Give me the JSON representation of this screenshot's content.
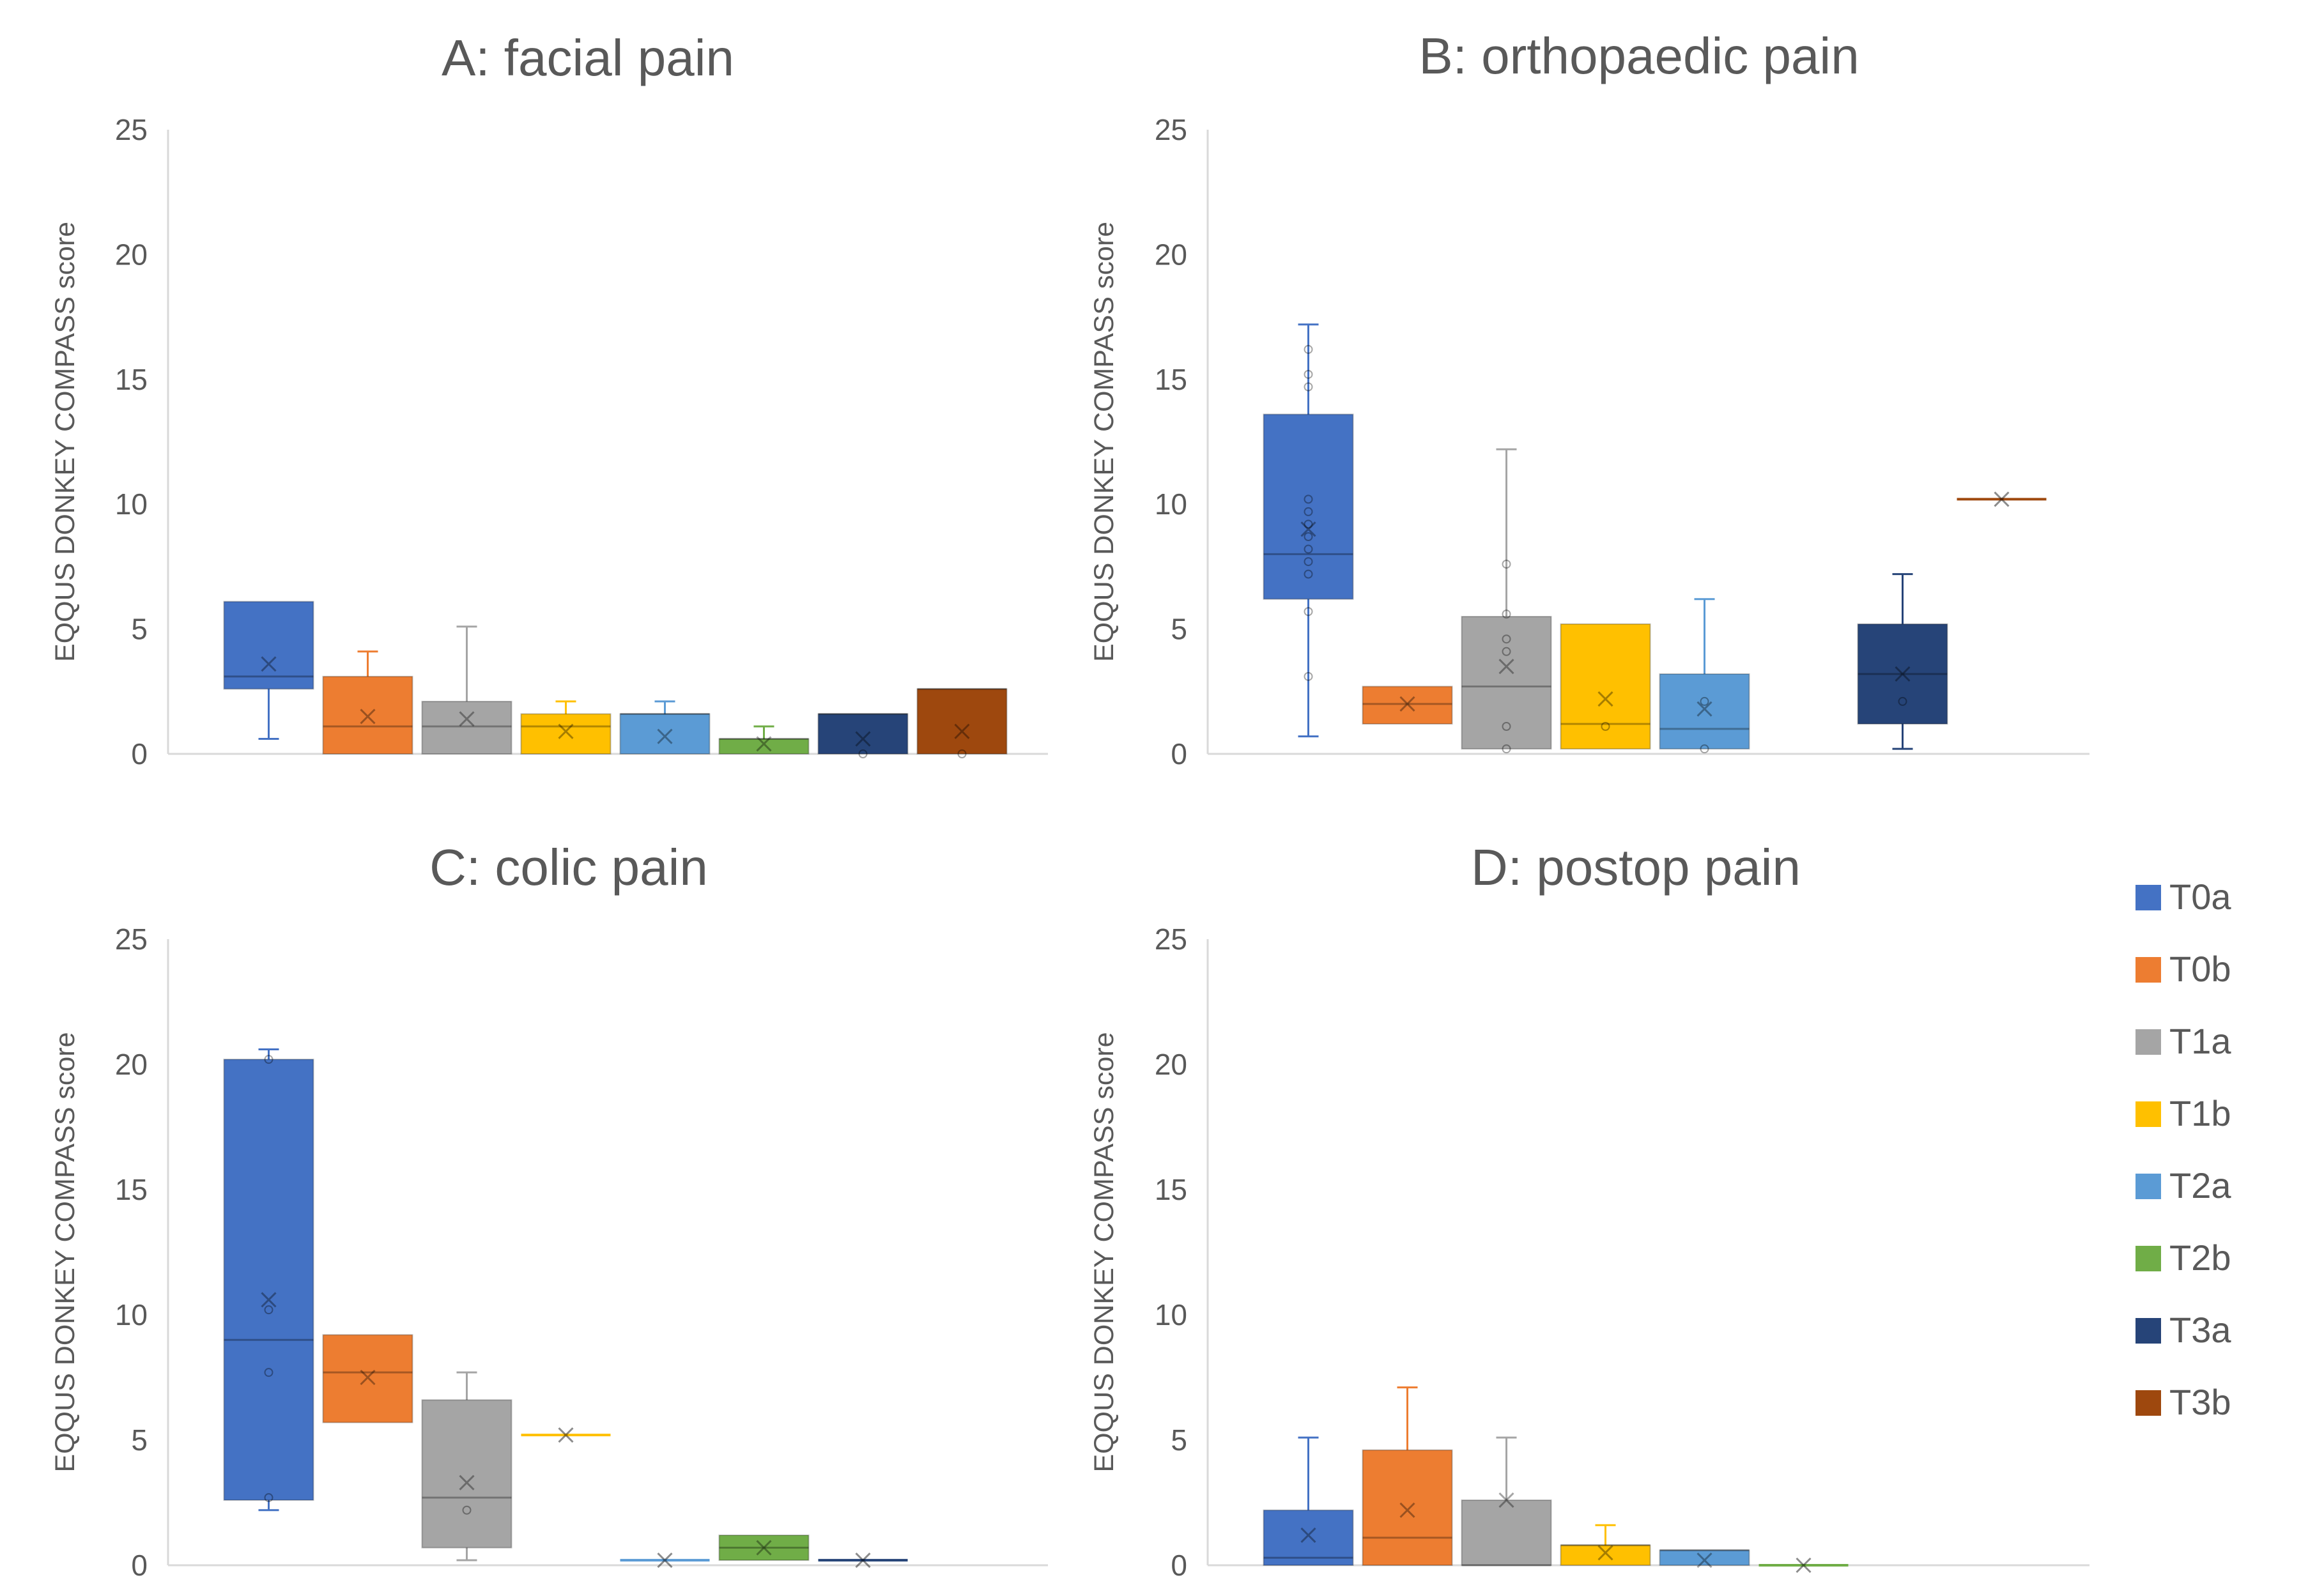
{
  "figure": {
    "y_axis_label": "EQQUS DONKEY COMPASS score"
  },
  "colors": {
    "T0a": "#4472C4",
    "T0b": "#ED7D31",
    "T1a": "#A5A5A5",
    "T1b": "#FFC000",
    "T2a": "#5B9BD5",
    "T2b": "#70AD47",
    "T3a": "#264478",
    "T3b": "#9E480E"
  },
  "legend": [
    "T0a",
    "T0b",
    "T1a",
    "T1b",
    "T2a",
    "T2b",
    "T3a",
    "T3b"
  ],
  "chart_data": [
    {
      "type": "box",
      "title": "A: facial pain",
      "ylabel": "EQQUS DONKEY COMPASS score",
      "ylim": [
        0,
        25
      ],
      "yticks": [
        0,
        5,
        10,
        15,
        20,
        25
      ],
      "series": [
        {
          "name": "T0a",
          "min": 0.6,
          "q1": 2.6,
          "median": 3.1,
          "q3": 6.1,
          "max": 6.1,
          "mean": 3.6,
          "outliers": []
        },
        {
          "name": "T0b",
          "min": 0,
          "q1": 0,
          "median": 1.1,
          "q3": 3.1,
          "max": 4.1,
          "mean": 1.5,
          "outliers": []
        },
        {
          "name": "T1a",
          "min": 0,
          "q1": 0,
          "median": 1.1,
          "q3": 2.1,
          "max": 5.1,
          "mean": 1.4,
          "outliers": []
        },
        {
          "name": "T1b",
          "min": 0,
          "q1": 0,
          "median": 1.1,
          "q3": 1.6,
          "max": 2.1,
          "mean": 0.9,
          "outliers": []
        },
        {
          "name": "T2a",
          "min": 0,
          "q1": 0,
          "median": 1.6,
          "q3": 1.6,
          "max": 2.1,
          "mean": 0.7,
          "outliers": []
        },
        {
          "name": "T2b",
          "min": 0,
          "q1": 0,
          "median": 0.6,
          "q3": 0.6,
          "max": 1.1,
          "mean": 0.4,
          "outliers": []
        },
        {
          "name": "T3a",
          "min": 0,
          "q1": 0,
          "median": 1.6,
          "q3": 1.6,
          "max": 1.6,
          "mean": 0.6,
          "outliers": [
            0
          ]
        },
        {
          "name": "T3b",
          "min": 0,
          "q1": 0,
          "median": 2.6,
          "q3": 2.6,
          "max": 2.6,
          "mean": 0.9,
          "outliers": [
            0
          ]
        }
      ]
    },
    {
      "type": "box",
      "title": "B: orthopaedic pain",
      "ylabel": "EQQUS DONKEY COMPASS score",
      "ylim": [
        0,
        25
      ],
      "yticks": [
        0,
        5,
        10,
        15,
        20,
        25
      ],
      "series": [
        {
          "name": "T0a",
          "min": 0.7,
          "q1": 6.2,
          "median": 8.0,
          "q3": 13.6,
          "max": 17.2,
          "mean": 9.0,
          "outliers": [
            3.1,
            5.7,
            7.2,
            7.7,
            8.2,
            8.7,
            9.2,
            9.7,
            10.2,
            14.7,
            15.2,
            16.2
          ]
        },
        {
          "name": "T0b",
          "min": 1.2,
          "q1": 1.2,
          "median": 2.0,
          "q3": 2.7,
          "max": 2.7,
          "mean": 2.0,
          "outliers": []
        },
        {
          "name": "T1a",
          "min": 0.2,
          "q1": 0.2,
          "median": 2.7,
          "q3": 5.5,
          "max": 12.2,
          "mean": 3.5,
          "outliers": [
            0.2,
            1.1,
            4.1,
            4.6,
            5.6,
            7.6
          ]
        },
        {
          "name": "T1b",
          "min": 0.2,
          "q1": 0.2,
          "median": 1.2,
          "q3": 5.2,
          "max": 5.2,
          "mean": 2.2,
          "outliers": [
            1.1
          ]
        },
        {
          "name": "T2a",
          "min": 0.2,
          "q1": 0.2,
          "median": 1.0,
          "q3": 3.2,
          "max": 6.2,
          "mean": 1.8,
          "outliers": [
            0.2,
            2.1
          ]
        },
        {
          "name": "T2b",
          "empty": true
        },
        {
          "name": "T3a",
          "min": 0.2,
          "q1": 1.2,
          "median": 3.2,
          "q3": 5.2,
          "max": 7.2,
          "mean": 3.2,
          "outliers": [
            2.1
          ]
        },
        {
          "name": "T3b",
          "min": 10.2,
          "q1": 10.2,
          "median": 10.2,
          "q3": 10.2,
          "max": 10.2,
          "mean": 10.2,
          "outliers": []
        }
      ]
    },
    {
      "type": "box",
      "title": "C: colic pain",
      "ylabel": "EQQUS DONKEY COMPASS score",
      "ylim": [
        0,
        25
      ],
      "yticks": [
        0,
        5,
        10,
        15,
        20,
        25
      ],
      "series": [
        {
          "name": "T0a",
          "min": 2.2,
          "q1": 2.6,
          "median": 9.0,
          "q3": 20.2,
          "max": 20.6,
          "mean": 10.6,
          "outliers": [
            2.7,
            7.7,
            10.2,
            20.2
          ]
        },
        {
          "name": "T0b",
          "min": 5.7,
          "q1": 5.7,
          "median": 7.7,
          "q3": 9.2,
          "max": 9.2,
          "mean": 7.5,
          "outliers": []
        },
        {
          "name": "T1a",
          "min": 0.2,
          "q1": 0.7,
          "median": 2.7,
          "q3": 6.6,
          "max": 7.7,
          "mean": 3.3,
          "outliers": [
            2.2
          ]
        },
        {
          "name": "T1b",
          "min": 5.2,
          "q1": 5.2,
          "median": 5.2,
          "q3": 5.2,
          "max": 5.2,
          "mean": 5.2,
          "outliers": []
        },
        {
          "name": "T2a",
          "min": 0.2,
          "q1": 0.2,
          "median": 0.2,
          "q3": 0.2,
          "max": 0.2,
          "mean": 0.2,
          "outliers": []
        },
        {
          "name": "T2b",
          "min": 0.2,
          "q1": 0.2,
          "median": 0.7,
          "q3": 1.2,
          "max": 1.2,
          "mean": 0.7,
          "outliers": []
        },
        {
          "name": "T3a",
          "min": 0.2,
          "q1": 0.2,
          "median": 0.2,
          "q3": 0.2,
          "max": 0.2,
          "mean": 0.2,
          "outliers": []
        },
        {
          "name": "T3b",
          "empty": true
        }
      ]
    },
    {
      "type": "box",
      "title": "D: postop pain",
      "ylabel": "EQQUS DONKEY COMPASS score",
      "ylim": [
        0,
        25
      ],
      "yticks": [
        0,
        5,
        10,
        15,
        20,
        25
      ],
      "series": [
        {
          "name": "T0a",
          "min": 0,
          "q1": 0,
          "median": 0.3,
          "q3": 2.2,
          "max": 5.1,
          "mean": 1.2,
          "outliers": []
        },
        {
          "name": "T0b",
          "min": 0,
          "q1": 0,
          "median": 1.1,
          "q3": 4.6,
          "max": 7.1,
          "mean": 2.2,
          "outliers": []
        },
        {
          "name": "T1a",
          "min": 0,
          "q1": 0,
          "median": 0,
          "q3": 2.6,
          "max": 5.1,
          "mean": 2.6,
          "outliers": []
        },
        {
          "name": "T1b",
          "min": 0,
          "q1": 0,
          "median": 0.8,
          "q3": 0.8,
          "max": 1.6,
          "mean": 0.5,
          "outliers": []
        },
        {
          "name": "T2a",
          "min": 0,
          "q1": 0,
          "median": 0.6,
          "q3": 0.6,
          "max": 0.6,
          "mean": 0.2,
          "outliers": []
        },
        {
          "name": "T2b",
          "min": 0,
          "q1": 0,
          "median": 0,
          "q3": 0,
          "max": 0,
          "mean": 0,
          "outliers": []
        },
        {
          "name": "T3a",
          "empty": true
        },
        {
          "name": "T3b",
          "empty": true
        }
      ]
    }
  ]
}
